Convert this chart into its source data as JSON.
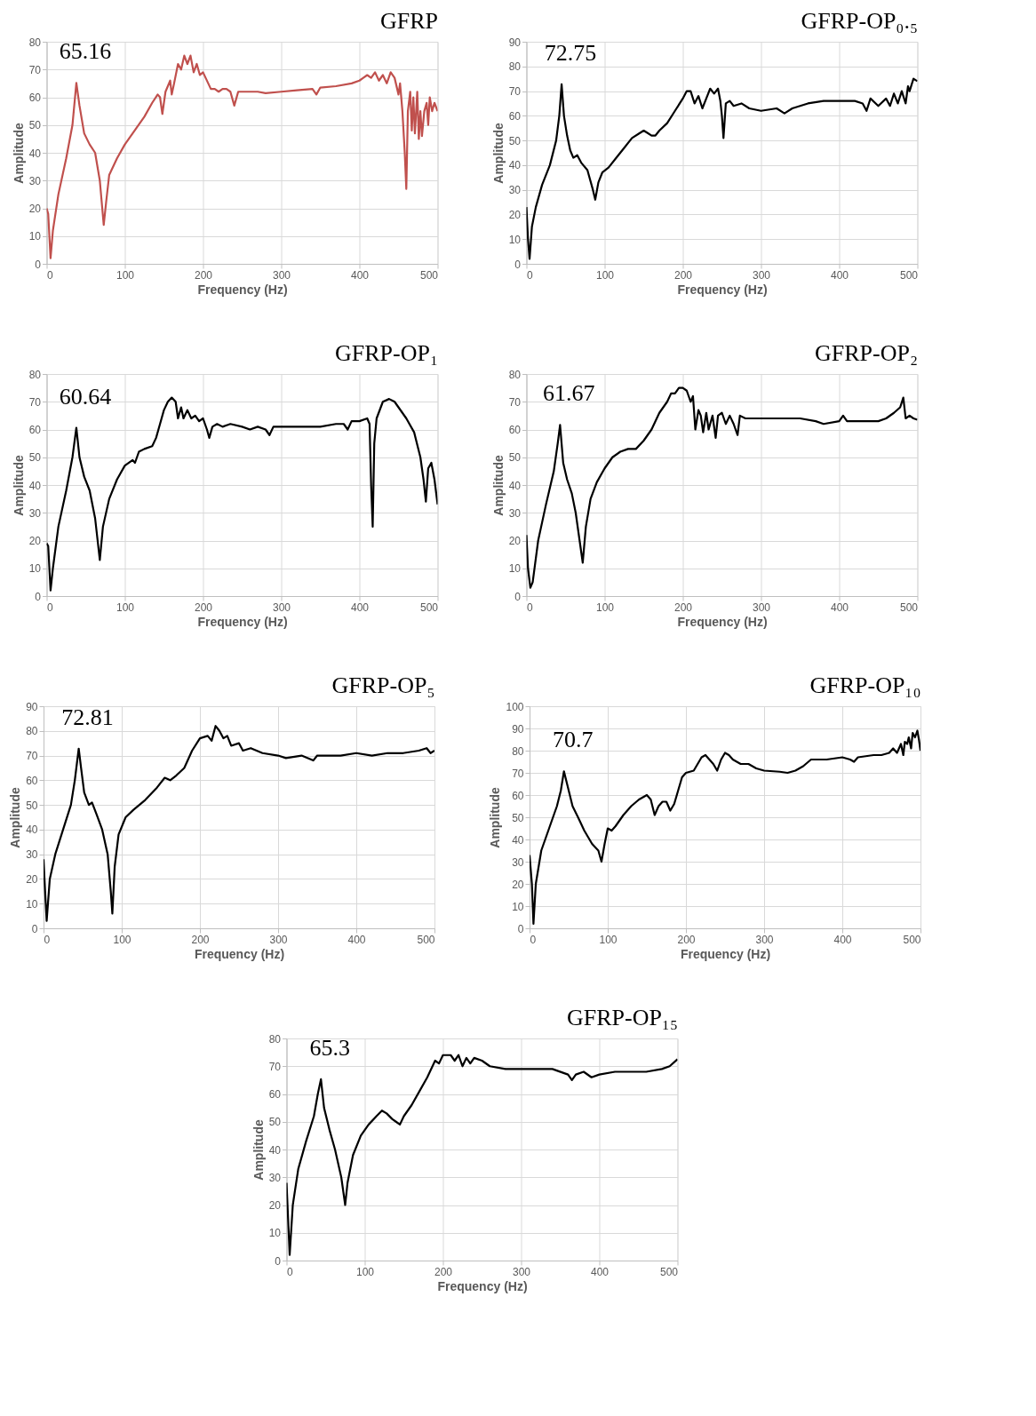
{
  "chart_data": [
    {
      "type": "line",
      "title": "GFRP",
      "xlabel": "Frequency (Hz)",
      "ylabel": "Amplitude",
      "xlim": [
        0,
        500
      ],
      "xticks": [
        0,
        100,
        200,
        300,
        400,
        500
      ],
      "ylim": [
        0,
        80
      ],
      "yticks": [
        0,
        10,
        20,
        30,
        40,
        50,
        60,
        70,
        80
      ],
      "grid": true,
      "annotations": [
        {
          "text": "65.16",
          "x": 38,
          "y": 65.16
        }
      ],
      "x": [
        0,
        2,
        5,
        8,
        15,
        25,
        33,
        38,
        42,
        48,
        55,
        62,
        68,
        73,
        76,
        80,
        90,
        100,
        115,
        125,
        135,
        142,
        145,
        148,
        152,
        158,
        160,
        163,
        168,
        172,
        176,
        180,
        184,
        188,
        192,
        196,
        200,
        210,
        215,
        220,
        225,
        230,
        235,
        240,
        245,
        255,
        270,
        280,
        300,
        320,
        340,
        345,
        350,
        370,
        390,
        400,
        405,
        410,
        415,
        420,
        425,
        430,
        435,
        440,
        445,
        450,
        452,
        455,
        458,
        460,
        462,
        465,
        467,
        469,
        471,
        474,
        476,
        478,
        480,
        483,
        486,
        488,
        490,
        493,
        496,
        500
      ],
      "series": [
        {
          "color": "#c0504d",
          "values": [
            20,
            18,
            2,
            12,
            25,
            38,
            50,
            65.16,
            57,
            47,
            43,
            40,
            30,
            14,
            22,
            32,
            38,
            43,
            49,
            53,
            58,
            61,
            60,
            54,
            62,
            66,
            61,
            65,
            72,
            70,
            75,
            72,
            75,
            69,
            72,
            68,
            69,
            63,
            63,
            62,
            63,
            63,
            62,
            57,
            62,
            62,
            62,
            61.5,
            62,
            62.5,
            63,
            61,
            63.5,
            64,
            65,
            66,
            67,
            68,
            67,
            69,
            66,
            68,
            65,
            69,
            67,
            61,
            65,
            55,
            40,
            27,
            55,
            62,
            48,
            60,
            47,
            62,
            45,
            55,
            46,
            55,
            58,
            50,
            60,
            55,
            58,
            55
          ]
        }
      ]
    },
    {
      "type": "line",
      "title": "GFRP-OP₀.₅",
      "xlabel": "Frequency (Hz)",
      "ylabel": "Amplitude",
      "xlim": [
        0,
        500
      ],
      "xticks": [
        0,
        100,
        200,
        300,
        400,
        500
      ],
      "ylim": [
        0,
        90
      ],
      "yticks": [
        0,
        10,
        20,
        30,
        40,
        50,
        60,
        70,
        80,
        90
      ],
      "grid": true,
      "annotations": [
        {
          "text": "72.75",
          "x": 45,
          "y": 72.75
        }
      ],
      "x": [
        0,
        2,
        4,
        7,
        12,
        20,
        30,
        38,
        42,
        45,
        48,
        52,
        56,
        60,
        65,
        70,
        78,
        85,
        88,
        92,
        97,
        105,
        115,
        125,
        135,
        145,
        150,
        155,
        160,
        165,
        170,
        180,
        190,
        200,
        205,
        210,
        215,
        220,
        225,
        230,
        235,
        240,
        245,
        248,
        250,
        252,
        255,
        260,
        265,
        275,
        285,
        300,
        320,
        330,
        340,
        360,
        380,
        400,
        420,
        430,
        435,
        440,
        450,
        460,
        465,
        470,
        475,
        480,
        485,
        488,
        490,
        495,
        500
      ],
      "series": [
        {
          "color": "#000000",
          "values": [
            23,
            10,
            2,
            15,
            23,
            32,
            40,
            50,
            60,
            72.75,
            60,
            52,
            46,
            43,
            44,
            41,
            38,
            30,
            26,
            33,
            37,
            39,
            43,
            47,
            51,
            53,
            54,
            53,
            52,
            52,
            54,
            57,
            62,
            67,
            70,
            70,
            65,
            68,
            63,
            67,
            71,
            69,
            71,
            66,
            60,
            51,
            65,
            66,
            64,
            65,
            63,
            62,
            63,
            61,
            63,
            65,
            66,
            66,
            66,
            65,
            62,
            67,
            64,
            67,
            64,
            69,
            65,
            70,
            65,
            72,
            70,
            75,
            74
          ]
        }
      ]
    },
    {
      "type": "line",
      "title": "GFRP-OP₁",
      "xlabel": "Frequency (Hz)",
      "ylabel": "Amplitude",
      "xlim": [
        0,
        500
      ],
      "xticks": [
        0,
        100,
        200,
        300,
        400,
        500
      ],
      "ylim": [
        0,
        80
      ],
      "yticks": [
        0,
        10,
        20,
        30,
        40,
        50,
        60,
        70,
        80
      ],
      "grid": true,
      "annotations": [
        {
          "text": "60.64",
          "x": 38,
          "y": 60.64
        }
      ],
      "x": [
        0,
        2,
        5,
        8,
        15,
        25,
        33,
        38,
        42,
        48,
        55,
        62,
        68,
        72,
        80,
        90,
        100,
        110,
        113,
        118,
        125,
        135,
        140,
        145,
        150,
        155,
        160,
        165,
        168,
        172,
        175,
        180,
        185,
        190,
        195,
        200,
        205,
        208,
        212,
        218,
        225,
        235,
        250,
        260,
        270,
        280,
        285,
        290,
        300,
        320,
        350,
        370,
        380,
        385,
        390,
        400,
        410,
        413,
        415,
        417,
        419,
        422,
        430,
        438,
        445,
        450,
        460,
        470,
        478,
        482,
        485,
        488,
        492,
        496,
        500
      ],
      "series": [
        {
          "color": "#000000",
          "values": [
            19,
            18,
            2,
            10,
            25,
            38,
            50,
            60.64,
            50,
            43,
            38,
            28,
            13,
            25,
            35,
            42,
            47,
            49,
            48,
            52,
            53,
            54,
            57,
            62,
            67,
            70,
            71.5,
            70,
            64,
            68,
            64,
            67,
            64,
            65,
            63,
            64,
            60,
            57,
            61,
            62,
            61,
            62,
            61,
            60,
            61,
            60,
            58,
            61,
            61,
            61,
            61,
            62,
            62,
            60,
            63,
            63,
            64,
            62,
            40,
            25,
            55,
            64,
            70,
            71,
            70,
            68,
            64,
            59,
            50,
            42,
            34,
            46,
            48,
            42,
            33
          ]
        }
      ]
    },
    {
      "type": "line",
      "title": "GFRP-OP₂",
      "xlabel": "Frequency (Hz)",
      "ylabel": "Amplitude",
      "xlim": [
        0,
        500
      ],
      "xticks": [
        0,
        100,
        200,
        300,
        400,
        500
      ],
      "ylim": [
        0,
        80
      ],
      "yticks": [
        0,
        10,
        20,
        30,
        40,
        50,
        60,
        70,
        80
      ],
      "grid": true,
      "annotations": [
        {
          "text": "61.67",
          "x": 43,
          "y": 61.67
        }
      ],
      "x": [
        0,
        2,
        5,
        8,
        15,
        25,
        35,
        40,
        43,
        47,
        52,
        58,
        63,
        68,
        72,
        76,
        82,
        90,
        100,
        110,
        120,
        130,
        140,
        150,
        160,
        170,
        180,
        185,
        190,
        195,
        200,
        205,
        210,
        213,
        216,
        220,
        223,
        226,
        230,
        233,
        238,
        242,
        245,
        250,
        255,
        260,
        265,
        270,
        273,
        280,
        300,
        320,
        350,
        370,
        380,
        400,
        405,
        410,
        430,
        450,
        460,
        470,
        478,
        482,
        485,
        490,
        495,
        500
      ],
      "series": [
        {
          "color": "#000000",
          "values": [
            22,
            10,
            3,
            5,
            20,
            33,
            45,
            55,
            61.67,
            48,
            42,
            37,
            30,
            20,
            12,
            25,
            35,
            41,
            46,
            50,
            52,
            53,
            53,
            56,
            60,
            66,
            70,
            73,
            73,
            75,
            75,
            74,
            70,
            72,
            60,
            67,
            65,
            59,
            66,
            60,
            65,
            57,
            65,
            66,
            62,
            65,
            62,
            58,
            65,
            64,
            64,
            64,
            64,
            63,
            62,
            63,
            65,
            63,
            63,
            63,
            64,
            66,
            68,
            71.5,
            64,
            65,
            64,
            63.5
          ]
        }
      ]
    },
    {
      "type": "line",
      "title": "GFRP-OP₅",
      "xlabel": "Frequency (Hz)",
      "ylabel": "Amplitude",
      "xlim": [
        0,
        500
      ],
      "xticks": [
        0,
        100,
        200,
        300,
        400,
        500
      ],
      "ylim": [
        0,
        90
      ],
      "yticks": [
        0,
        10,
        20,
        30,
        40,
        50,
        60,
        70,
        80,
        90
      ],
      "grid": true,
      "annotations": [
        {
          "text": "72.81",
          "x": 45,
          "y": 72.81
        }
      ],
      "x": [
        0,
        2,
        4,
        8,
        15,
        25,
        35,
        40,
        45,
        48,
        52,
        58,
        62,
        68,
        75,
        82,
        86,
        88,
        91,
        96,
        105,
        115,
        130,
        145,
        155,
        162,
        170,
        180,
        190,
        200,
        210,
        215,
        220,
        225,
        230,
        235,
        240,
        250,
        255,
        265,
        280,
        300,
        310,
        330,
        345,
        350,
        380,
        400,
        420,
        440,
        460,
        480,
        490,
        495,
        500
      ],
      "series": [
        {
          "color": "#000000",
          "values": [
            28,
            15,
            3,
            20,
            30,
            40,
            50,
            60,
            72.81,
            65,
            55,
            50,
            51,
            46,
            40,
            30,
            15,
            6,
            25,
            38,
            45,
            48,
            52,
            57,
            61,
            60,
            62,
            65,
            72,
            77,
            78,
            76,
            82,
            80,
            77,
            78,
            74,
            75,
            72,
            73,
            71,
            70,
            69,
            70,
            68,
            70,
            70,
            71,
            70,
            71,
            71,
            72,
            73,
            71,
            72
          ]
        }
      ]
    },
    {
      "type": "line",
      "title": "GFRP-OP₁₀",
      "xlabel": "Frequency (Hz)",
      "ylabel": "Amplitude",
      "xlim": [
        0,
        500
      ],
      "xticks": [
        0,
        100,
        200,
        300,
        400,
        500
      ],
      "ylim": [
        0,
        100
      ],
      "yticks": [
        0,
        10,
        20,
        30,
        40,
        50,
        60,
        70,
        80,
        90,
        100
      ],
      "grid": true,
      "annotations": [
        {
          "text": "70.7",
          "x": 44,
          "y": 70.7
        }
      ],
      "x": [
        0,
        3,
        5,
        8,
        15,
        25,
        35,
        40,
        44,
        48,
        55,
        62,
        70,
        80,
        88,
        92,
        96,
        100,
        105,
        110,
        120,
        130,
        140,
        150,
        155,
        160,
        165,
        170,
        175,
        180,
        185,
        190,
        195,
        200,
        210,
        220,
        225,
        230,
        235,
        240,
        245,
        250,
        255,
        260,
        270,
        280,
        290,
        300,
        320,
        330,
        340,
        350,
        360,
        380,
        400,
        410,
        415,
        420,
        440,
        450,
        460,
        465,
        470,
        475,
        478,
        480,
        483,
        485,
        488,
        490,
        493,
        496,
        498,
        500
      ],
      "series": [
        {
          "color": "#000000",
          "values": [
            33,
            20,
            2,
            20,
            35,
            45,
            55,
            62,
            70.7,
            65,
            55,
            50,
            44,
            38,
            35,
            30,
            38,
            45,
            44,
            46,
            51,
            55,
            58,
            60,
            58,
            51,
            55,
            57,
            57,
            53,
            56,
            62,
            68,
            70,
            71,
            77,
            78,
            76,
            74,
            71,
            76,
            79,
            78,
            76,
            74,
            74,
            72,
            71,
            70.5,
            70,
            71,
            73,
            76,
            76,
            77,
            76,
            75,
            77,
            78,
            78,
            79,
            81,
            79,
            83,
            78,
            84,
            83,
            86,
            81,
            88,
            86,
            89,
            85,
            80
          ]
        }
      ]
    },
    {
      "type": "line",
      "title": "GFRP-OP₁₅",
      "xlabel": "Frequency (Hz)",
      "ylabel": "Amplitude",
      "xlim": [
        0,
        500
      ],
      "xticks": [
        0,
        100,
        200,
        300,
        400,
        500
      ],
      "ylim": [
        0,
        80
      ],
      "yticks": [
        0,
        10,
        20,
        30,
        40,
        50,
        60,
        70,
        80
      ],
      "grid": true,
      "annotations": [
        {
          "text": "65.3",
          "x": 44,
          "y": 65.3
        }
      ],
      "x": [
        0,
        2,
        4,
        8,
        15,
        25,
        35,
        40,
        44,
        48,
        55,
        62,
        70,
        75,
        78,
        85,
        95,
        105,
        115,
        122,
        128,
        135,
        140,
        145,
        150,
        160,
        170,
        180,
        190,
        195,
        200,
        210,
        215,
        220,
        225,
        230,
        235,
        240,
        250,
        260,
        280,
        300,
        320,
        340,
        360,
        365,
        370,
        380,
        390,
        400,
        420,
        440,
        460,
        480,
        490,
        500
      ],
      "series": [
        {
          "color": "#000000",
          "values": [
            28,
            15,
            2,
            20,
            33,
            43,
            52,
            60,
            65.3,
            55,
            47,
            40,
            30,
            20,
            28,
            38,
            45,
            49,
            52,
            54,
            53,
            51,
            50,
            49,
            52,
            56,
            61,
            66,
            72,
            71,
            74,
            74,
            72,
            74,
            70,
            73,
            71,
            73,
            72,
            70,
            69,
            69,
            69,
            69,
            67,
            65,
            67,
            68,
            66,
            67,
            68,
            68,
            68,
            69,
            70,
            72.5
          ]
        }
      ]
    }
  ]
}
